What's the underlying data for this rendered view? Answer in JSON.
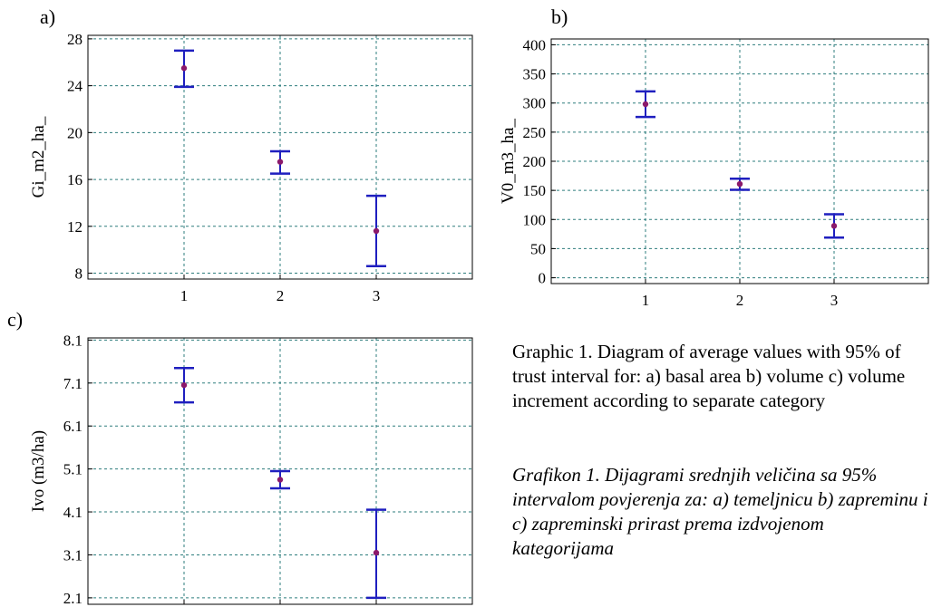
{
  "panel_labels": [
    "a)",
    "b)",
    "c)"
  ],
  "captions": {
    "english": "Graphic 1. Diagram of average values with 95% of trust interval for: a) basal area b) volume c) volume increment according to separate category",
    "bosnian": "Grafikon 1. Dijagrami srednjih veličina sa 95% intervalom povjerenja za: a) temeljnicu b) zapreminu i c) zapreminski prirast prema izdvojenom kategorijama"
  },
  "colors": {
    "interval": "#1f1fbf",
    "mean_point": "#8b1a6b",
    "grid": "#2e7d7d",
    "axis": "#000000"
  },
  "chart_data": [
    {
      "type": "scatter",
      "subtype": "means-with-95-percent-intervals",
      "panel": "a)",
      "title": "",
      "xlabel": "",
      "ylabel": "Gi_m2_ha_",
      "categories": [
        "1",
        "2",
        "3"
      ],
      "mean": [
        25.5,
        17.5,
        11.6
      ],
      "lower": [
        23.9,
        16.5,
        8.6
      ],
      "upper": [
        27.0,
        18.4,
        14.6
      ],
      "xlim": [
        0,
        4
      ],
      "ylim": [
        7.5,
        28.3
      ],
      "yticks": [
        8,
        12,
        16,
        20,
        24,
        28
      ],
      "ytick_labels": [
        "8",
        "12",
        "16",
        "20",
        "24",
        "28"
      ],
      "grid": true,
      "legend": "none"
    },
    {
      "type": "scatter",
      "subtype": "means-with-95-percent-intervals",
      "panel": "b)",
      "title": "",
      "xlabel": "",
      "ylabel": "V0_m3_ha_",
      "categories": [
        "1",
        "2",
        "3"
      ],
      "mean": [
        298,
        161,
        89
      ],
      "lower": [
        276,
        151,
        69
      ],
      "upper": [
        320,
        170,
        109
      ],
      "xlim": [
        0,
        4
      ],
      "ylim": [
        -10,
        410
      ],
      "yticks": [
        0,
        50,
        100,
        150,
        200,
        250,
        300,
        350,
        400
      ],
      "ytick_labels": [
        "0",
        "50",
        "100",
        "150",
        "200",
        "250",
        "300",
        "350",
        "400"
      ],
      "grid": true,
      "legend": "none"
    },
    {
      "type": "scatter",
      "subtype": "means-with-95-percent-intervals",
      "panel": "c)",
      "title": "",
      "xlabel": "",
      "ylabel": "Ivo (m3/ha)",
      "categories": [
        "1",
        "2",
        "3"
      ],
      "mean": [
        7.05,
        4.85,
        3.15
      ],
      "lower": [
        6.65,
        4.65,
        2.1
      ],
      "upper": [
        7.45,
        5.05,
        4.15
      ],
      "xlim": [
        0,
        4
      ],
      "ylim": [
        1.95,
        8.15
      ],
      "yticks": [
        2.1,
        3.1,
        4.1,
        5.1,
        6.1,
        7.1,
        8.1
      ],
      "ytick_labels": [
        "2.1",
        "3.1",
        "4.1",
        "5.1",
        "6.1",
        "7.1",
        "8.1"
      ],
      "grid": true,
      "legend": "none"
    }
  ]
}
